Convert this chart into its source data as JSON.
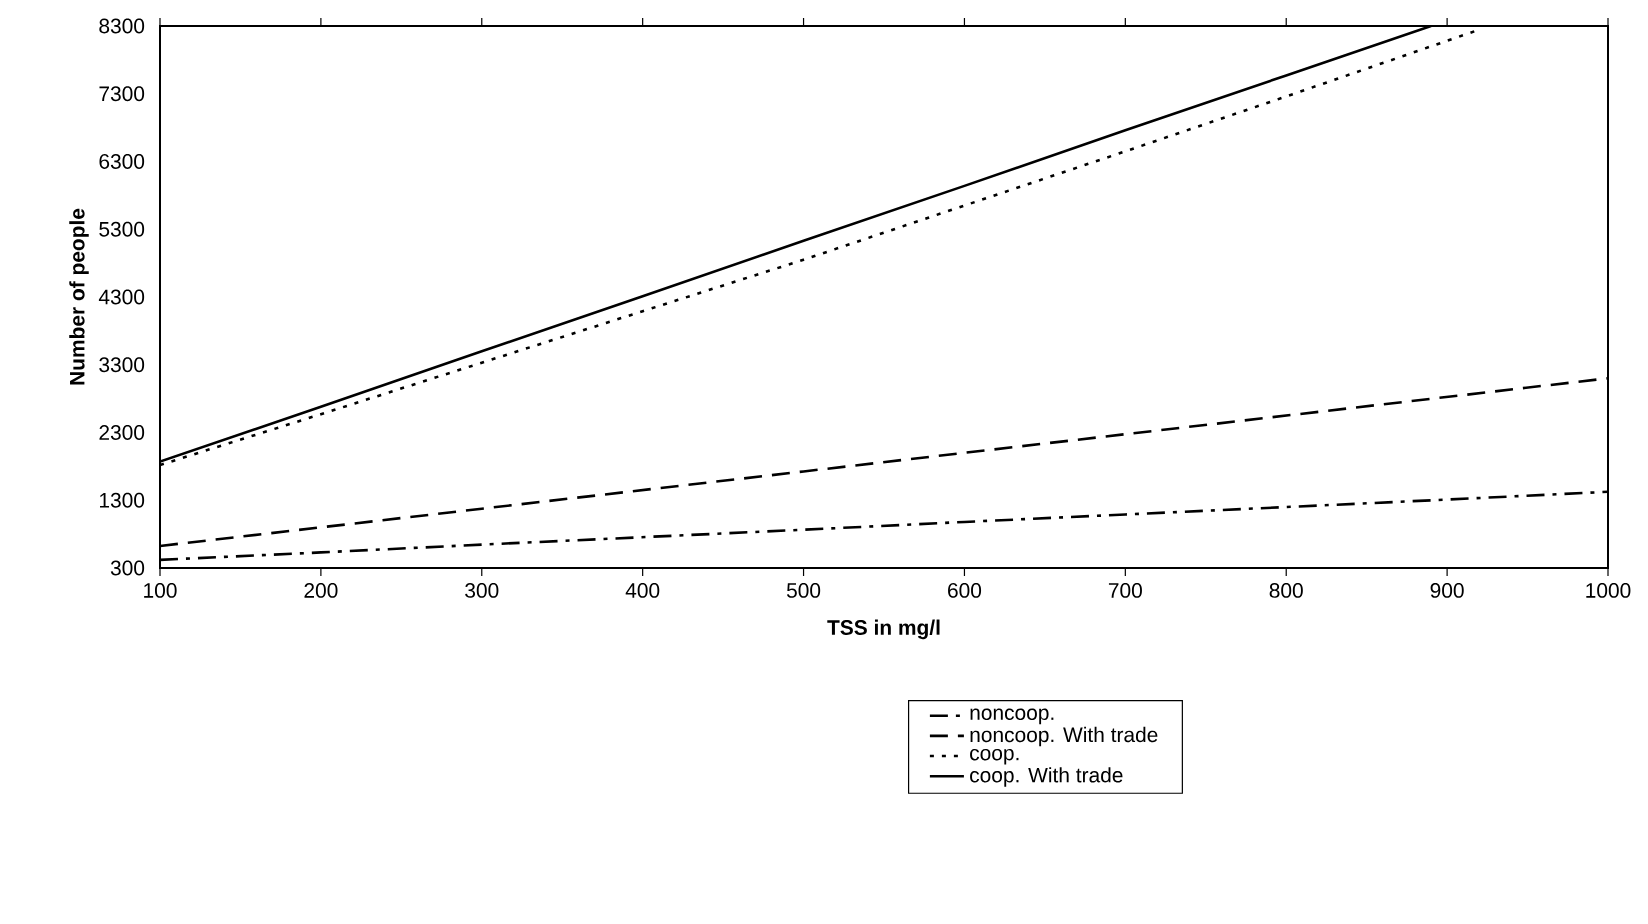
{
  "chart_data": {
    "type": "line",
    "xlabel": "TSS in mg/l",
    "ylabel": "Number of people",
    "xlim": [
      100,
      1000
    ],
    "xticks": [
      100,
      200,
      300,
      400,
      500,
      600,
      700,
      800,
      900,
      1000
    ],
    "ylim": [
      300,
      8300
    ],
    "yticks": [
      300,
      1300,
      2300,
      3300,
      4300,
      5300,
      6300,
      7300,
      8300
    ],
    "legend": "bottom right",
    "grid": false,
    "marker": "none",
    "series": [
      {
        "name": "noncoop.",
        "color": "#000000",
        "line_style": "dashdot",
        "x": [
          100,
          200,
          300,
          400,
          500,
          600,
          700,
          800,
          900,
          1000
        ],
        "values": [
          420,
          530,
          645,
          755,
          865,
          980,
          1090,
          1200,
          1310,
          1425
        ]
      },
      {
        "name": "noncoop. With trade",
        "color": "#000000",
        "line_style": "dashed",
        "x": [
          100,
          200,
          300,
          400,
          500,
          600,
          700,
          800,
          900,
          1000
        ],
        "values": [
          625,
          900,
          1175,
          1450,
          1725,
          2000,
          2275,
          2550,
          2825,
          3100
        ]
      },
      {
        "name": "coop.",
        "color": "#000000",
        "line_style": "dotted",
        "x": [
          100,
          200,
          300,
          400,
          500,
          600,
          700,
          800,
          918
        ],
        "values": [
          1820,
          2570,
          3330,
          4090,
          4850,
          5650,
          6450,
          7260,
          8230
        ]
      },
      {
        "name": "coop. With trade",
        "color": "#000000",
        "line_style": "solid",
        "x": [
          100,
          200,
          300,
          400,
          500,
          600,
          700,
          800,
          890
        ],
        "values": [
          1870,
          2680,
          3500,
          4310,
          5130,
          5940,
          6760,
          7570,
          8300
        ]
      }
    ]
  }
}
